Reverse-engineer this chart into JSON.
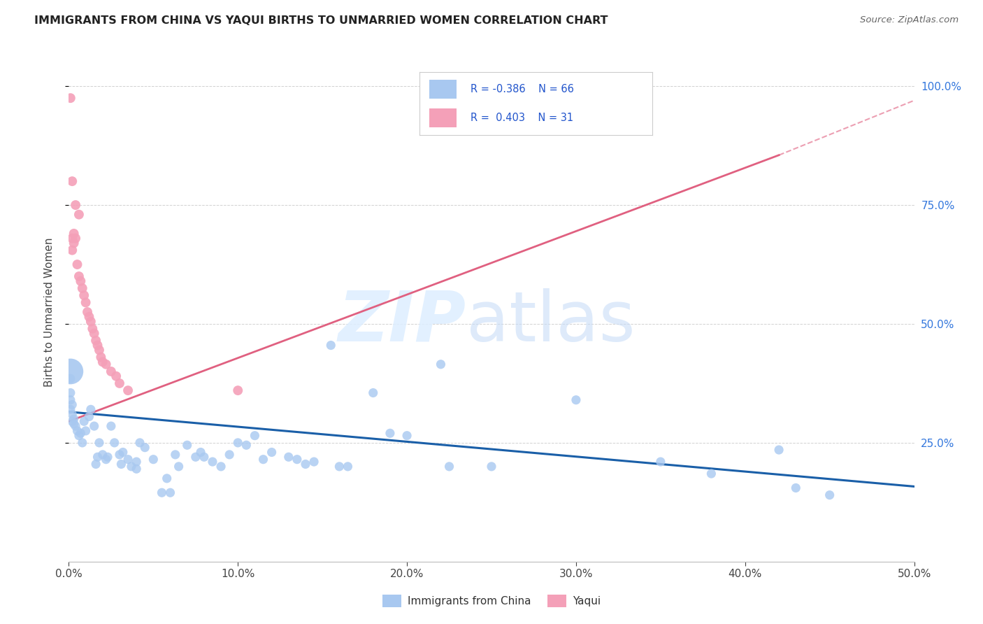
{
  "title": "IMMIGRANTS FROM CHINA VS YAQUI BIRTHS TO UNMARRIED WOMEN CORRELATION CHART",
  "source": "Source: ZipAtlas.com",
  "ylabel": "Births to Unmarried Women",
  "xlim": [
    0.0,
    0.5
  ],
  "ylim": [
    0.0,
    1.05
  ],
  "xtick_labels": [
    "0.0%",
    "10.0%",
    "20.0%",
    "30.0%",
    "40.0%",
    "50.0%"
  ],
  "xtick_vals": [
    0.0,
    0.1,
    0.2,
    0.3,
    0.4,
    0.5
  ],
  "ytick_labels": [
    "25.0%",
    "50.0%",
    "75.0%",
    "100.0%"
  ],
  "ytick_vals": [
    0.25,
    0.5,
    0.75,
    1.0
  ],
  "blue_color": "#a8c8f0",
  "pink_color": "#f4a0b8",
  "trendline_blue": "#1a5fa8",
  "trendline_pink": "#e06080",
  "blue_scatter": [
    [
      0.001,
      0.385
    ],
    [
      0.001,
      0.355
    ],
    [
      0.001,
      0.34
    ],
    [
      0.001,
      0.32
    ],
    [
      0.002,
      0.33
    ],
    [
      0.002,
      0.31
    ],
    [
      0.002,
      0.295
    ],
    [
      0.003,
      0.3
    ],
    [
      0.003,
      0.29
    ],
    [
      0.004,
      0.285
    ],
    [
      0.005,
      0.275
    ],
    [
      0.006,
      0.265
    ],
    [
      0.007,
      0.27
    ],
    [
      0.008,
      0.25
    ],
    [
      0.009,
      0.295
    ],
    [
      0.01,
      0.275
    ],
    [
      0.012,
      0.305
    ],
    [
      0.013,
      0.32
    ],
    [
      0.015,
      0.285
    ],
    [
      0.016,
      0.205
    ],
    [
      0.017,
      0.22
    ],
    [
      0.018,
      0.25
    ],
    [
      0.02,
      0.225
    ],
    [
      0.022,
      0.215
    ],
    [
      0.023,
      0.22
    ],
    [
      0.025,
      0.285
    ],
    [
      0.027,
      0.25
    ],
    [
      0.03,
      0.225
    ],
    [
      0.031,
      0.205
    ],
    [
      0.032,
      0.23
    ],
    [
      0.035,
      0.215
    ],
    [
      0.037,
      0.2
    ],
    [
      0.04,
      0.21
    ],
    [
      0.04,
      0.195
    ],
    [
      0.042,
      0.25
    ],
    [
      0.045,
      0.24
    ],
    [
      0.05,
      0.215
    ],
    [
      0.055,
      0.145
    ],
    [
      0.058,
      0.175
    ],
    [
      0.06,
      0.145
    ],
    [
      0.063,
      0.225
    ],
    [
      0.065,
      0.2
    ],
    [
      0.07,
      0.245
    ],
    [
      0.075,
      0.22
    ],
    [
      0.078,
      0.23
    ],
    [
      0.08,
      0.22
    ],
    [
      0.085,
      0.21
    ],
    [
      0.09,
      0.2
    ],
    [
      0.095,
      0.225
    ],
    [
      0.1,
      0.25
    ],
    [
      0.105,
      0.245
    ],
    [
      0.11,
      0.265
    ],
    [
      0.115,
      0.215
    ],
    [
      0.12,
      0.23
    ],
    [
      0.13,
      0.22
    ],
    [
      0.135,
      0.215
    ],
    [
      0.14,
      0.205
    ],
    [
      0.145,
      0.21
    ],
    [
      0.155,
      0.455
    ],
    [
      0.16,
      0.2
    ],
    [
      0.165,
      0.2
    ],
    [
      0.18,
      0.355
    ],
    [
      0.19,
      0.27
    ],
    [
      0.2,
      0.265
    ],
    [
      0.22,
      0.415
    ],
    [
      0.225,
      0.2
    ],
    [
      0.25,
      0.2
    ],
    [
      0.3,
      0.34
    ],
    [
      0.35,
      0.21
    ],
    [
      0.38,
      0.185
    ],
    [
      0.42,
      0.235
    ],
    [
      0.43,
      0.155
    ],
    [
      0.45,
      0.14
    ]
  ],
  "blue_large_dot": [
    0.001,
    0.4
  ],
  "pink_scatter": [
    [
      0.001,
      0.975
    ],
    [
      0.002,
      0.8
    ],
    [
      0.002,
      0.68
    ],
    [
      0.002,
      0.655
    ],
    [
      0.003,
      0.69
    ],
    [
      0.003,
      0.67
    ],
    [
      0.004,
      0.75
    ],
    [
      0.004,
      0.68
    ],
    [
      0.005,
      0.625
    ],
    [
      0.006,
      0.73
    ],
    [
      0.006,
      0.6
    ],
    [
      0.007,
      0.59
    ],
    [
      0.008,
      0.575
    ],
    [
      0.009,
      0.56
    ],
    [
      0.01,
      0.545
    ],
    [
      0.011,
      0.525
    ],
    [
      0.012,
      0.515
    ],
    [
      0.013,
      0.505
    ],
    [
      0.014,
      0.49
    ],
    [
      0.015,
      0.48
    ],
    [
      0.016,
      0.465
    ],
    [
      0.017,
      0.455
    ],
    [
      0.018,
      0.445
    ],
    [
      0.019,
      0.43
    ],
    [
      0.02,
      0.42
    ],
    [
      0.022,
      0.415
    ],
    [
      0.025,
      0.4
    ],
    [
      0.028,
      0.39
    ],
    [
      0.03,
      0.375
    ],
    [
      0.035,
      0.36
    ],
    [
      0.1,
      0.36
    ]
  ],
  "blue_trendline": [
    [
      0.0,
      0.315
    ],
    [
      0.5,
      0.158
    ]
  ],
  "pink_trendline_solid": [
    [
      0.0,
      0.295
    ],
    [
      0.42,
      0.855
    ]
  ],
  "pink_trendline_dashed": [
    [
      0.42,
      0.855
    ],
    [
      0.5,
      0.97
    ]
  ],
  "figsize": [
    14.06,
    8.92
  ],
  "dpi": 100
}
